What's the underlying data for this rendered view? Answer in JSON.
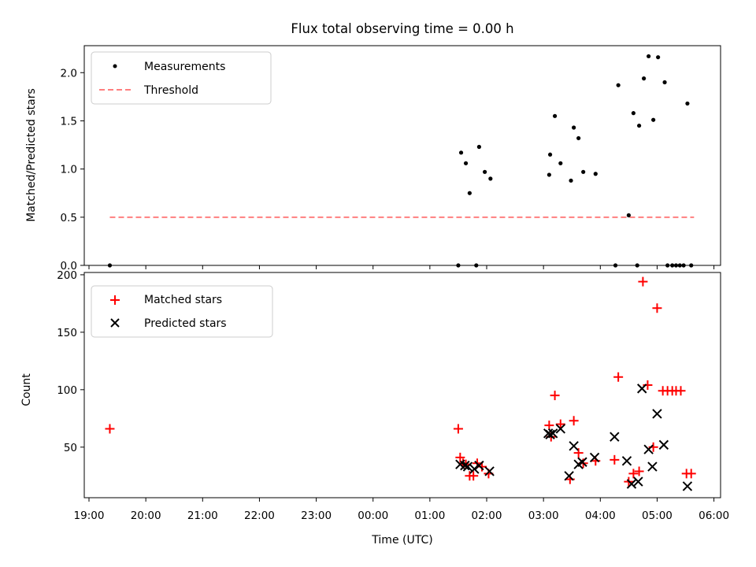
{
  "chart_data": [
    {
      "type": "scatter",
      "title": "Flux total observing time = 0.00 h",
      "xlabel": "",
      "ylabel": "Matched/Predicted stars",
      "ylim": [
        0,
        2.28
      ],
      "yticks": [
        0.0,
        0.5,
        1.0,
        1.5,
        2.0
      ],
      "ytick_labels": [
        "0.0",
        "0.5",
        "1.0",
        "1.5",
        "2.0"
      ],
      "legend_position": "top-left",
      "series": [
        {
          "name": "Measurements",
          "marker": "dot",
          "color": "#000000",
          "points": [
            [
              "19:22",
              0.0
            ],
            [
              "01:30",
              0.0
            ],
            [
              "01:49",
              0.0
            ],
            [
              "01:33",
              1.17
            ],
            [
              "01:38",
              1.06
            ],
            [
              "01:42",
              0.75
            ],
            [
              "01:52",
              1.23
            ],
            [
              "01:58",
              0.97
            ],
            [
              "02:04",
              0.9
            ],
            [
              "03:06",
              0.94
            ],
            [
              "03:07",
              1.15
            ],
            [
              "03:12",
              1.55
            ],
            [
              "03:18",
              1.06
            ],
            [
              "03:29",
              0.88
            ],
            [
              "03:32",
              1.43
            ],
            [
              "03:37",
              1.32
            ],
            [
              "03:42",
              0.97
            ],
            [
              "03:55",
              0.95
            ],
            [
              "04:16",
              0.0
            ],
            [
              "04:19",
              1.87
            ],
            [
              "04:30",
              0.52
            ],
            [
              "04:35",
              1.58
            ],
            [
              "04:39",
              0.0
            ],
            [
              "04:41",
              1.45
            ],
            [
              "04:46",
              1.94
            ],
            [
              "04:51",
              2.17
            ],
            [
              "04:56",
              1.51
            ],
            [
              "05:01",
              2.16
            ],
            [
              "05:08",
              1.9
            ],
            [
              "05:11",
              0.0
            ],
            [
              "05:16",
              0.0
            ],
            [
              "05:20",
              0.0
            ],
            [
              "05:24",
              0.0
            ],
            [
              "05:28",
              0.0
            ],
            [
              "05:32",
              1.68
            ],
            [
              "05:36",
              0.0
            ]
          ]
        },
        {
          "name": "Threshold",
          "style": "dashed",
          "color": "#ff7f7f",
          "points": [
            [
              "19:22",
              0.5
            ],
            [
              "05:39",
              0.5
            ]
          ]
        }
      ]
    },
    {
      "type": "scatter",
      "title": "",
      "xlabel": "Time (UTC)",
      "ylabel": "Count",
      "ylim": [
        6,
        202
      ],
      "yticks": [
        50,
        100,
        150,
        200
      ],
      "ytick_labels": [
        "50",
        "100",
        "150",
        "200"
      ],
      "xlim": [
        "18:55",
        "06:07"
      ],
      "xticks": [
        "19:00",
        "20:00",
        "21:00",
        "22:00",
        "23:00",
        "00:00",
        "01:00",
        "02:00",
        "03:00",
        "04:00",
        "05:00",
        "06:00"
      ],
      "legend_position": "top-left",
      "series": [
        {
          "name": "Matched stars",
          "marker": "plus",
          "color": "#ff0000",
          "points": [
            [
              "19:22",
              66
            ],
            [
              "01:30",
              66
            ],
            [
              "01:32",
              41
            ],
            [
              "01:35",
              36
            ],
            [
              "01:38",
              35
            ],
            [
              "01:42",
              25
            ],
            [
              "01:46",
              25
            ],
            [
              "01:50",
              36
            ],
            [
              "01:55",
              33
            ],
            [
              "02:02",
              27
            ],
            [
              "03:06",
              69
            ],
            [
              "03:08",
              59
            ],
            [
              "03:12",
              95
            ],
            [
              "03:18",
              70
            ],
            [
              "03:28",
              22
            ],
            [
              "03:32",
              73
            ],
            [
              "03:37",
              45
            ],
            [
              "03:42",
              36
            ],
            [
              "03:55",
              38
            ],
            [
              "04:15",
              39
            ],
            [
              "04:19",
              111
            ],
            [
              "04:30",
              20
            ],
            [
              "04:35",
              27
            ],
            [
              "04:41",
              29
            ],
            [
              "04:45",
              194
            ],
            [
              "04:50",
              104
            ],
            [
              "04:56",
              50
            ],
            [
              "05:00",
              171
            ],
            [
              "05:06",
              99
            ],
            [
              "05:11",
              99
            ],
            [
              "05:16",
              99
            ],
            [
              "05:20",
              99
            ],
            [
              "05:25",
              99
            ],
            [
              "05:31",
              27
            ],
            [
              "05:36",
              27
            ]
          ]
        },
        {
          "name": "Predicted stars",
          "marker": "x",
          "color": "#000000",
          "points": [
            [
              "01:32",
              35
            ],
            [
              "01:37",
              34
            ],
            [
              "01:40",
              33
            ],
            [
              "01:47",
              31
            ],
            [
              "01:52",
              34
            ],
            [
              "02:03",
              29
            ],
            [
              "03:05",
              62
            ],
            [
              "03:07",
              61
            ],
            [
              "03:10",
              62
            ],
            [
              "03:18",
              66
            ],
            [
              "03:27",
              25
            ],
            [
              "03:32",
              51
            ],
            [
              "03:37",
              35
            ],
            [
              "03:41",
              37
            ],
            [
              "03:54",
              41
            ],
            [
              "04:15",
              59
            ],
            [
              "04:28",
              38
            ],
            [
              "04:33",
              18
            ],
            [
              "04:40",
              20
            ],
            [
              "04:44",
              101
            ],
            [
              "04:51",
              48
            ],
            [
              "04:55",
              33
            ],
            [
              "05:00",
              79
            ],
            [
              "05:07",
              52
            ],
            [
              "05:32",
              16
            ]
          ]
        }
      ]
    }
  ]
}
